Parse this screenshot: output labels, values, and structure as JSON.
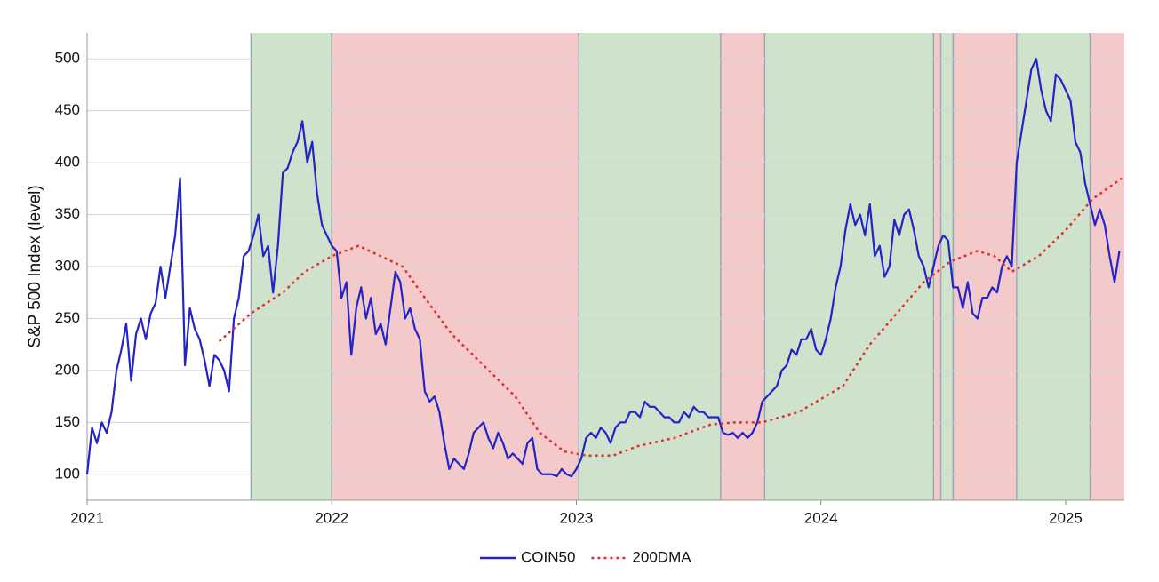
{
  "chart_data": {
    "type": "line",
    "y_label": "S&P 500 Index (level)",
    "xlim": [
      2021,
      2025.24
    ],
    "xticks": [
      2021,
      2022,
      2023,
      2024,
      2025
    ],
    "ylim": [
      75,
      525
    ],
    "yticks": [
      100,
      150,
      200,
      250,
      300,
      350,
      400,
      450,
      500
    ],
    "grid": true,
    "legend": "bottom",
    "regions": [
      {
        "start": 2021.67,
        "end": 2022.0,
        "color": "#cfe3cc"
      },
      {
        "start": 2022.0,
        "end": 2023.01,
        "color": "#f4c9c9"
      },
      {
        "start": 2023.01,
        "end": 2023.59,
        "color": "#cfe3cc"
      },
      {
        "start": 2023.59,
        "end": 2023.77,
        "color": "#f4c9c9"
      },
      {
        "start": 2023.77,
        "end": 2024.46,
        "color": "#cfe3cc"
      },
      {
        "start": 2024.46,
        "end": 2024.49,
        "color": "#f4c9c9"
      },
      {
        "start": 2024.49,
        "end": 2024.54,
        "color": "#cfe3cc"
      },
      {
        "start": 2024.54,
        "end": 2024.8,
        "color": "#f4c9c9"
      },
      {
        "start": 2024.8,
        "end": 2025.1,
        "color": "#cfe3cc"
      },
      {
        "start": 2025.1,
        "end": 2025.24,
        "color": "#f4c9c9"
      }
    ],
    "series": [
      {
        "name": "COIN50",
        "color": "#2323c8",
        "line_style": "solid",
        "x": [
          2021,
          2021.02,
          2021.04,
          2021.06,
          2021.08,
          2021.1,
          2021.12,
          2021.14,
          2021.16,
          2021.18,
          2021.2,
          2021.22,
          2021.24,
          2021.26,
          2021.28,
          2021.3,
          2021.32,
          2021.34,
          2021.36,
          2021.38,
          2021.4,
          2021.42,
          2021.44,
          2021.46,
          2021.48,
          2021.5,
          2021.52,
          2021.54,
          2021.56,
          2021.58,
          2021.6,
          2021.62,
          2021.64,
          2021.66,
          2021.68,
          2021.7,
          2021.72,
          2021.74,
          2021.76,
          2021.78,
          2021.8,
          2021.82,
          2021.84,
          2021.86,
          2021.88,
          2021.9,
          2021.92,
          2021.94,
          2021.96,
          2021.98,
          2022,
          2022.02,
          2022.04,
          2022.06,
          2022.08,
          2022.1,
          2022.12,
          2022.14,
          2022.16,
          2022.18,
          2022.2,
          2022.22,
          2022.24,
          2022.26,
          2022.28,
          2022.3,
          2022.32,
          2022.34,
          2022.36,
          2022.38,
          2022.4,
          2022.42,
          2022.44,
          2022.46,
          2022.48,
          2022.5,
          2022.52,
          2022.54,
          2022.56,
          2022.58,
          2022.6,
          2022.62,
          2022.64,
          2022.66,
          2022.68,
          2022.7,
          2022.72,
          2022.74,
          2022.76,
          2022.78,
          2022.8,
          2022.82,
          2022.84,
          2022.86,
          2022.88,
          2022.9,
          2022.92,
          2022.94,
          2022.96,
          2022.98,
          2023,
          2023.02,
          2023.04,
          2023.06,
          2023.08,
          2023.1,
          2023.12,
          2023.14,
          2023.16,
          2023.18,
          2023.2,
          2023.22,
          2023.24,
          2023.26,
          2023.28,
          2023.3,
          2023.32,
          2023.34,
          2023.36,
          2023.38,
          2023.4,
          2023.42,
          2023.44,
          2023.46,
          2023.48,
          2023.5,
          2023.52,
          2023.54,
          2023.56,
          2023.58,
          2023.6,
          2023.62,
          2023.64,
          2023.66,
          2023.68,
          2023.7,
          2023.72,
          2023.74,
          2023.76,
          2023.78,
          2023.8,
          2023.82,
          2023.84,
          2023.86,
          2023.88,
          2023.9,
          2023.92,
          2023.94,
          2023.96,
          2023.98,
          2024,
          2024.02,
          2024.04,
          2024.06,
          2024.08,
          2024.1,
          2024.12,
          2024.14,
          2024.16,
          2024.18,
          2024.2,
          2024.22,
          2024.24,
          2024.26,
          2024.28,
          2024.3,
          2024.32,
          2024.34,
          2024.36,
          2024.38,
          2024.4,
          2024.42,
          2024.44,
          2024.46,
          2024.48,
          2024.5,
          2024.52,
          2024.54,
          2024.56,
          2024.58,
          2024.6,
          2024.62,
          2024.64,
          2024.66,
          2024.68,
          2024.7,
          2024.72,
          2024.74,
          2024.76,
          2024.78,
          2024.8,
          2024.82,
          2024.84,
          2024.86,
          2024.88,
          2024.9,
          2024.92,
          2024.94,
          2024.96,
          2024.98,
          2025,
          2025.02,
          2025.04,
          2025.06,
          2025.08,
          2025.1,
          2025.12,
          2025.14,
          2025.16,
          2025.18,
          2025.2,
          2025.22
        ],
        "values": [
          100,
          145,
          130,
          150,
          140,
          160,
          200,
          220,
          245,
          190,
          235,
          250,
          230,
          255,
          265,
          300,
          270,
          300,
          330,
          385,
          205,
          260,
          240,
          230,
          210,
          185,
          215,
          210,
          200,
          180,
          250,
          270,
          310,
          315,
          330,
          350,
          310,
          320,
          275,
          320,
          390,
          395,
          410,
          420,
          440,
          400,
          420,
          370,
          340,
          330,
          320,
          315,
          270,
          285,
          215,
          260,
          280,
          250,
          270,
          235,
          245,
          225,
          260,
          295,
          285,
          250,
          260,
          240,
          230,
          180,
          170,
          175,
          160,
          130,
          105,
          115,
          110,
          105,
          120,
          140,
          145,
          150,
          135,
          125,
          140,
          130,
          115,
          120,
          115,
          110,
          130,
          135,
          105,
          100,
          100,
          100,
          98,
          105,
          100,
          98,
          105,
          115,
          135,
          140,
          135,
          145,
          140,
          130,
          145,
          150,
          150,
          160,
          160,
          155,
          170,
          165,
          165,
          160,
          155,
          155,
          150,
          150,
          160,
          155,
          165,
          160,
          160,
          155,
          155,
          155,
          140,
          138,
          140,
          135,
          140,
          135,
          140,
          150,
          170,
          175,
          180,
          185,
          200,
          205,
          220,
          215,
          230,
          230,
          240,
          220,
          215,
          230,
          250,
          280,
          300,
          335,
          360,
          340,
          350,
          330,
          360,
          310,
          320,
          290,
          300,
          345,
          330,
          350,
          355,
          335,
          310,
          300,
          280,
          300,
          320,
          330,
          325,
          280,
          280,
          260,
          285,
          255,
          250,
          270,
          270,
          280,
          275,
          300,
          310,
          300,
          400,
          430,
          460,
          490,
          500,
          470,
          450,
          440,
          485,
          480,
          470,
          460,
          420,
          410,
          380,
          360,
          340,
          355,
          340,
          310,
          285,
          315
        ]
      },
      {
        "name": "200DMA",
        "color": "#e0302a",
        "line_style": "dotted",
        "x": [
          2021.54,
          2021.67,
          2021.8,
          2021.89,
          2022.0,
          2022.11,
          2022.2,
          2022.29,
          2022.38,
          2022.49,
          2022.62,
          2022.75,
          2022.85,
          2022.95,
          2023.04,
          2023.15,
          2023.25,
          2023.4,
          2023.55,
          2023.65,
          2023.76,
          2023.91,
          2024.09,
          2024.2,
          2024.31,
          2024.42,
          2024.53,
          2024.64,
          2024.71,
          2024.78,
          2024.89,
          2025.0,
          2025.11,
          2025.23
        ],
        "values": [
          228,
          255,
          275,
          295,
          310,
          320,
          310,
          300,
          270,
          235,
          205,
          175,
          140,
          122,
          118,
          118,
          127,
          135,
          148,
          150,
          150,
          160,
          185,
          225,
          255,
          285,
          305,
          315,
          310,
          295,
          310,
          335,
          365,
          385
        ]
      }
    ]
  }
}
